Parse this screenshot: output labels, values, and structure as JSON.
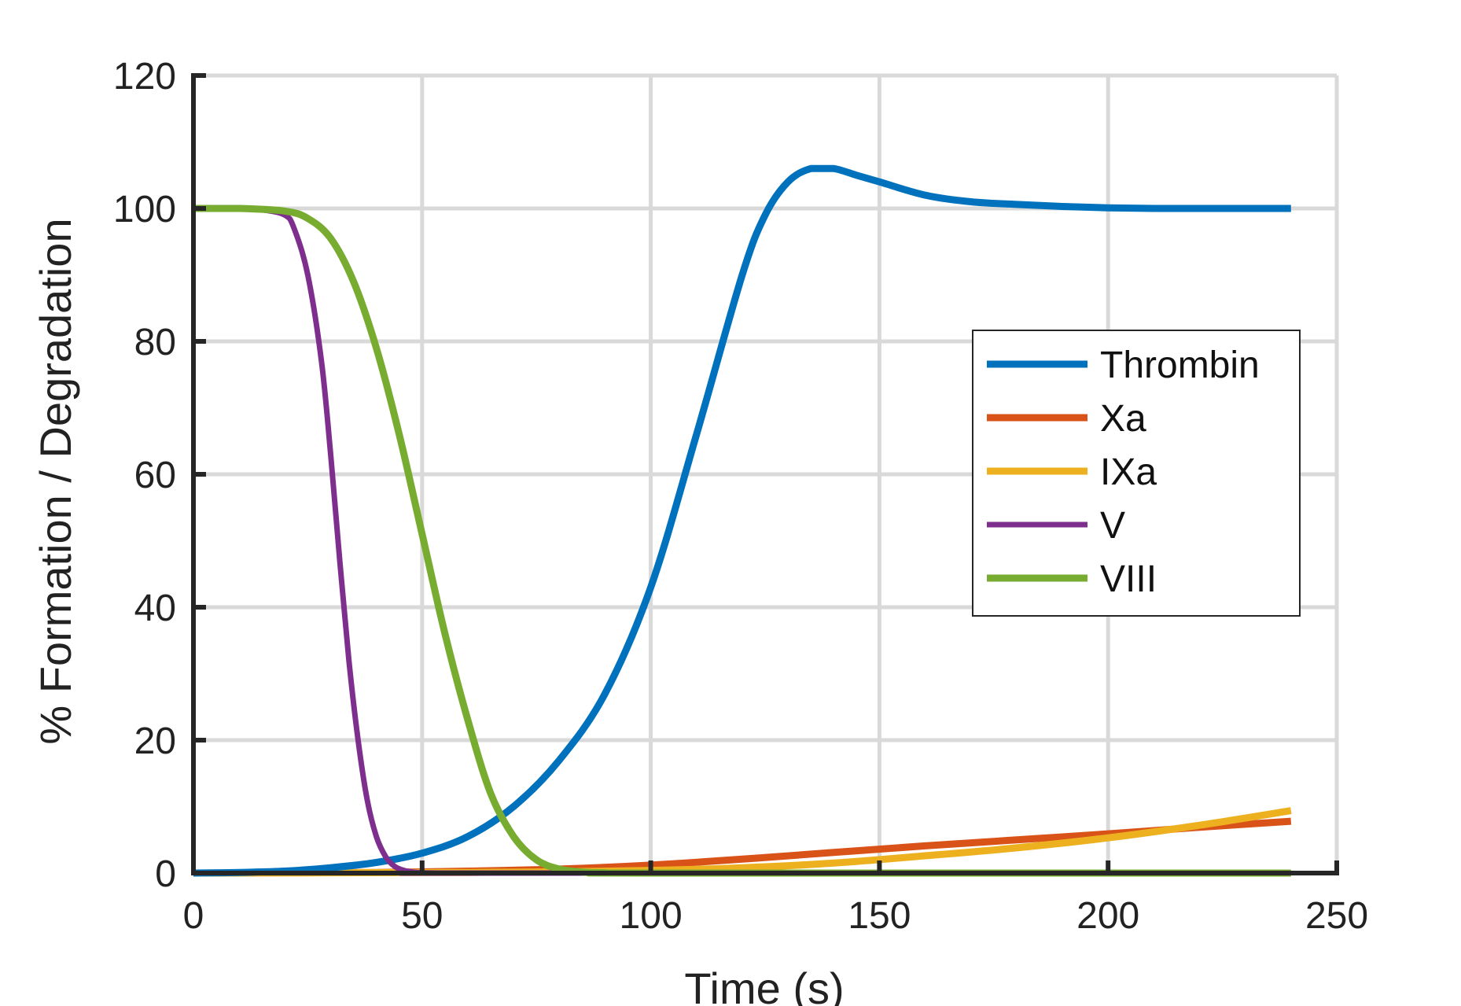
{
  "chart_data": {
    "type": "line",
    "title": "",
    "xlabel": "Time (s)",
    "ylabel": "% Formation / Degradation",
    "xlim": [
      0,
      250
    ],
    "ylim": [
      0,
      120
    ],
    "xticks": [
      0,
      50,
      100,
      150,
      200,
      250
    ],
    "yticks": [
      0,
      20,
      40,
      60,
      80,
      100,
      120
    ],
    "grid": true,
    "legend_position": "center-right",
    "series": [
      {
        "name": "Thrombin",
        "color": "#0072BD",
        "x": [
          0,
          10,
          20,
          30,
          40,
          50,
          60,
          70,
          80,
          90,
          100,
          110,
          120,
          125,
          130,
          135,
          140,
          145,
          150,
          160,
          170,
          180,
          190,
          200,
          210,
          220,
          230,
          240
        ],
        "y": [
          0,
          0.1,
          0.3,
          0.8,
          1.6,
          3,
          5.5,
          10,
          17,
          27,
          43,
          66,
          90,
          99,
          104,
          106,
          106,
          105,
          104,
          102,
          101,
          100.6,
          100.3,
          100.1,
          100,
          100,
          100,
          100
        ]
      },
      {
        "name": "Xa",
        "color": "#D95319",
        "x": [
          0,
          40,
          60,
          80,
          100,
          120,
          140,
          160,
          180,
          200,
          220,
          240
        ],
        "y": [
          0,
          0.1,
          0.3,
          0.6,
          1.2,
          2.1,
          3.1,
          4.1,
          5,
          5.9,
          6.9,
          7.8
        ]
      },
      {
        "name": "IXa",
        "color": "#EDB120",
        "x": [
          0,
          60,
          80,
          100,
          120,
          140,
          160,
          180,
          200,
          220,
          240
        ],
        "y": [
          0,
          0.1,
          0.2,
          0.4,
          0.8,
          1.5,
          2.6,
          3.8,
          5.3,
          7.2,
          9.4
        ]
      },
      {
        "name": "V",
        "color": "#7E2F8E",
        "x": [
          0,
          10,
          15,
          20,
          22,
          25,
          28,
          30,
          32,
          34,
          36,
          38,
          40,
          42,
          44,
          46,
          48,
          50,
          55,
          60,
          240
        ],
        "y": [
          100,
          100,
          99.8,
          99,
          97,
          90,
          77,
          63,
          47,
          32,
          20,
          11,
          5.5,
          2.5,
          1,
          0.4,
          0.15,
          0.05,
          0,
          0,
          0
        ]
      },
      {
        "name": "VIII",
        "color": "#77AC30",
        "x": [
          0,
          10,
          20,
          25,
          30,
          35,
          40,
          45,
          50,
          55,
          60,
          65,
          70,
          75,
          80,
          85,
          90,
          100,
          240
        ],
        "y": [
          100,
          100,
          99.6,
          98.5,
          95.5,
          89,
          79,
          66,
          51,
          36,
          23,
          12,
          5.5,
          2,
          0.6,
          0.15,
          0.05,
          0,
          0
        ]
      }
    ]
  }
}
